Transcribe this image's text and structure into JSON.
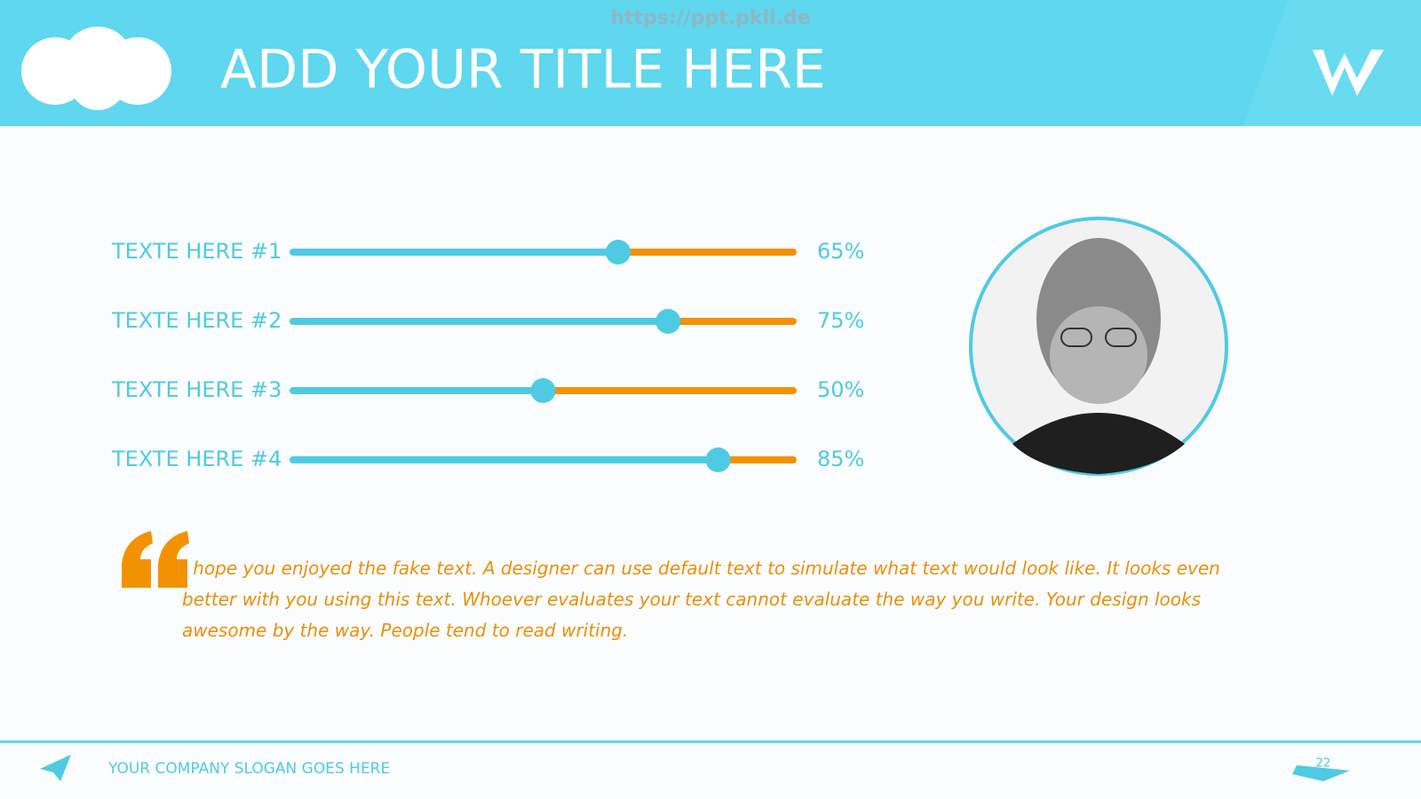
{
  "header": {
    "watermark": "https://ppt.pkll.de",
    "title": "ADD YOUR TITLE HERE"
  },
  "skills": {
    "xlim": [
      0,
      100
    ],
    "track_color": "#4ecbe3",
    "rest_color": "#f39200",
    "items": [
      {
        "label": "TEXTE HERE #1",
        "value": 65,
        "value_label": "65%"
      },
      {
        "label": "TEXTE HERE #2",
        "value": 75,
        "value_label": "75%"
      },
      {
        "label": "TEXTE HERE #3",
        "value": 50,
        "value_label": "50%"
      },
      {
        "label": "TEXTE HERE #4",
        "value": 85,
        "value_label": "85%"
      }
    ]
  },
  "quote": "I hope you enjoyed the fake text. A designer can use default text to simulate what text would look like. It looks even better with you using this text. Whoever evaluates your text cannot evaluate the way you write. Your design looks awesome by the way. People tend to read writing.",
  "footer": {
    "slogan": "YOUR COMPANY SLOGAN GOES HERE",
    "page": "22"
  }
}
